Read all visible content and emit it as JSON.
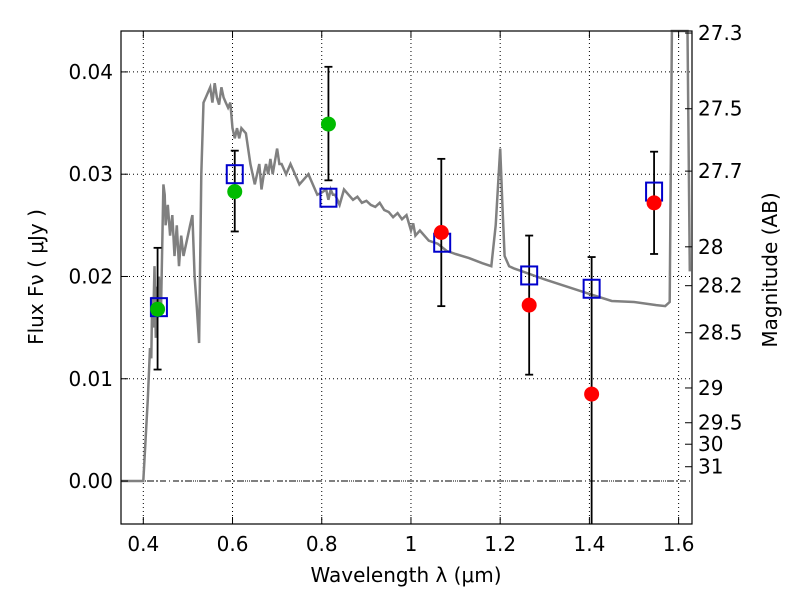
{
  "chart_data": {
    "type": "scatter",
    "title": "",
    "xlabel": "Wavelength  λ (μm)",
    "ylabel": "Flux  Fν  ( μJy )",
    "y2label": "Magnitude (AB)",
    "xlim": [
      0.35,
      1.63
    ],
    "ylim": [
      -0.0042,
      0.044
    ],
    "grid": true,
    "x_ticks": [
      0.4,
      0.6,
      0.8,
      1.0,
      1.2,
      1.4,
      1.6
    ],
    "x_tick_labels": [
      "0.4",
      "0.6",
      "0.8",
      "1",
      "1.2",
      "1.4",
      "1.6"
    ],
    "y_ticks": [
      0.0,
      0.01,
      0.02,
      0.03,
      0.04
    ],
    "y_tick_labels": [
      "0.00",
      "0.01",
      "0.02",
      "0.03",
      "0.04"
    ],
    "y2_ticks": [
      {
        "label": "27.3",
        "flux": 0.0438
      },
      {
        "label": "27.5",
        "flux": 0.0364
      },
      {
        "label": "27.7",
        "flux": 0.0303
      },
      {
        "label": "28",
        "flux": 0.0229
      },
      {
        "label": "28.2",
        "flux": 0.0191
      },
      {
        "label": "28.5",
        "flux": 0.0145
      },
      {
        "label": "29",
        "flux": 0.0091
      },
      {
        "label": "29.5",
        "flux": 0.0057
      },
      {
        "label": "30",
        "flux": 0.0036
      },
      {
        "label": "31",
        "flux": 0.0014
      }
    ],
    "model_sed": {
      "color": "#808080",
      "x": [
        0.35,
        0.375,
        0.383,
        0.39,
        0.4,
        0.41,
        0.415,
        0.418,
        0.42,
        0.422,
        0.425,
        0.428,
        0.43,
        0.432,
        0.435,
        0.437,
        0.44,
        0.445,
        0.448,
        0.45,
        0.455,
        0.46,
        0.465,
        0.47,
        0.475,
        0.48,
        0.485,
        0.49,
        0.495,
        0.5,
        0.505,
        0.51,
        0.515,
        0.52,
        0.525,
        0.53,
        0.535,
        0.54,
        0.545,
        0.55,
        0.555,
        0.56,
        0.565,
        0.57,
        0.575,
        0.58,
        0.585,
        0.59,
        0.595,
        0.6,
        0.605,
        0.61,
        0.615,
        0.62,
        0.63,
        0.64,
        0.65,
        0.66,
        0.665,
        0.67,
        0.675,
        0.68,
        0.685,
        0.69,
        0.7,
        0.705,
        0.71,
        0.72,
        0.73,
        0.74,
        0.75,
        0.76,
        0.77,
        0.78,
        0.79,
        0.8,
        0.81,
        0.815,
        0.82,
        0.825,
        0.83,
        0.835,
        0.84,
        0.85,
        0.86,
        0.87,
        0.88,
        0.89,
        0.9,
        0.91,
        0.92,
        0.93,
        0.94,
        0.95,
        0.96,
        0.97,
        0.98,
        0.99,
        1.0,
        1.005,
        1.01,
        1.02,
        1.04,
        1.06,
        1.08,
        1.1,
        1.13,
        1.16,
        1.18,
        1.19,
        1.2,
        1.205,
        1.21,
        1.22,
        1.23,
        1.25,
        1.3,
        1.35,
        1.4,
        1.45,
        1.5,
        1.55,
        1.57,
        1.58,
        1.585,
        1.59,
        1.6,
        1.61,
        1.62,
        1.625
      ],
      "y": [
        0.0,
        0.0,
        0.0,
        0.0,
        0.0,
        0.008,
        0.013,
        0.012,
        0.018,
        0.015,
        0.021,
        0.014,
        0.019,
        0.016,
        0.02,
        0.018,
        0.0172,
        0.029,
        0.028,
        0.025,
        0.027,
        0.024,
        0.026,
        0.022,
        0.025,
        0.021,
        0.024,
        0.022,
        0.023,
        0.024,
        0.025,
        0.026,
        0.02,
        0.017,
        0.0135,
        0.03,
        0.037,
        0.0375,
        0.038,
        0.0385,
        0.037,
        0.0389,
        0.0375,
        0.0368,
        0.0385,
        0.0375,
        0.037,
        0.0365,
        0.037,
        0.0345,
        0.0335,
        0.0345,
        0.0335,
        0.0345,
        0.034,
        0.031,
        0.029,
        0.031,
        0.0285,
        0.03,
        0.031,
        0.03,
        0.0315,
        0.03,
        0.0325,
        0.031,
        0.031,
        0.03,
        0.031,
        0.03,
        0.029,
        0.0295,
        0.03,
        0.029,
        0.028,
        0.0282,
        0.0285,
        0.0275,
        0.0285,
        0.028,
        0.028,
        0.0275,
        0.027,
        0.0285,
        0.028,
        0.0275,
        0.0278,
        0.0272,
        0.0274,
        0.027,
        0.0268,
        0.0272,
        0.0265,
        0.0263,
        0.0258,
        0.0262,
        0.0256,
        0.026,
        0.0245,
        0.0252,
        0.024,
        0.0245,
        0.0235,
        0.0232,
        0.0225,
        0.0222,
        0.0218,
        0.0213,
        0.021,
        0.025,
        0.0325,
        0.027,
        0.022,
        0.021,
        0.0208,
        0.0205,
        0.0197,
        0.019,
        0.0183,
        0.0176,
        0.0175,
        0.0172,
        0.0171,
        0.0175,
        0.044,
        0.044,
        0.044,
        0.044,
        0.044,
        0.0205
      ]
    },
    "series": [
      {
        "name": "",
        "marker": "open-square",
        "color": "#0000cc",
        "x": [
          0.435,
          0.605,
          0.815,
          1.07,
          1.265,
          1.405,
          1.545
        ],
        "y": [
          0.017,
          0.03,
          0.0277,
          0.0233,
          0.0201,
          0.0188,
          0.0283
        ]
      },
      {
        "name": "",
        "marker": "filled-circle",
        "color": "#00bb00",
        "x": [
          0.432,
          0.605,
          0.815
        ],
        "y": [
          0.0168,
          0.0283,
          0.0349
        ]
      },
      {
        "name": "",
        "marker": "filled-circle",
        "color": "#ff0000",
        "x": [
          1.068,
          1.265,
          1.405,
          1.545
        ],
        "y": [
          0.0243,
          0.0172,
          0.0085,
          0.0272
        ]
      }
    ],
    "error_bars": [
      {
        "x": 0.432,
        "low": 0.0109,
        "high": 0.0228
      },
      {
        "x": 0.605,
        "low": 0.0244,
        "high": 0.0323
      },
      {
        "x": 0.815,
        "low": 0.0294,
        "high": 0.0405
      },
      {
        "x": 1.068,
        "low": 0.0171,
        "high": 0.0315
      },
      {
        "x": 1.265,
        "low": 0.0104,
        "high": 0.024
      },
      {
        "x": 1.405,
        "low": -0.0042,
        "high": 0.0219
      },
      {
        "x": 1.545,
        "low": 0.0222,
        "high": 0.0322
      }
    ]
  }
}
